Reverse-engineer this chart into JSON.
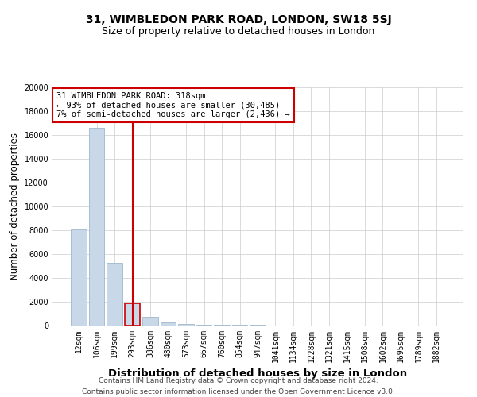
{
  "title": "31, WIMBLEDON PARK ROAD, LONDON, SW18 5SJ",
  "subtitle": "Size of property relative to detached houses in London",
  "xlabel": "Distribution of detached houses by size in London",
  "ylabel": "Number of detached properties",
  "footer_line1": "Contains HM Land Registry data © Crown copyright and database right 2024.",
  "footer_line2": "Contains public sector information licensed under the Open Government Licence v3.0.",
  "annotation_line1": "31 WIMBLEDON PARK ROAD: 318sqm",
  "annotation_line2": "← 93% of detached houses are smaller (30,485)",
  "annotation_line3": "7% of semi-detached houses are larger (2,436) →",
  "bar_color": "#c8d8e8",
  "bar_edge_color": "#a0b8cc",
  "highlight_bar_edge_color": "#cc0000",
  "vline_color": "#cc0000",
  "annotation_box_edge_color": "#cc0000",
  "categories": [
    "12sqm",
    "106sqm",
    "199sqm",
    "293sqm",
    "386sqm",
    "480sqm",
    "573sqm",
    "667sqm",
    "760sqm",
    "854sqm",
    "947sqm",
    "1041sqm",
    "1134sqm",
    "1228sqm",
    "1321sqm",
    "1415sqm",
    "1508sqm",
    "1602sqm",
    "1695sqm",
    "1789sqm",
    "1882sqm"
  ],
  "values": [
    8100,
    16600,
    5300,
    1850,
    750,
    300,
    150,
    100,
    80,
    60,
    40,
    30,
    20,
    15,
    10,
    8,
    6,
    5,
    4,
    3,
    2
  ],
  "vline_x_index": 3,
  "ylim": [
    0,
    20000
  ],
  "yticks": [
    0,
    2000,
    4000,
    6000,
    8000,
    10000,
    12000,
    14000,
    16000,
    18000,
    20000
  ],
  "title_fontsize": 10,
  "subtitle_fontsize": 9,
  "xlabel_fontsize": 9.5,
  "ylabel_fontsize": 8.5,
  "tick_fontsize": 7,
  "annotation_fontsize": 7.5,
  "footer_fontsize": 6.5,
  "background_color": "#ffffff",
  "grid_color": "#cccccc"
}
